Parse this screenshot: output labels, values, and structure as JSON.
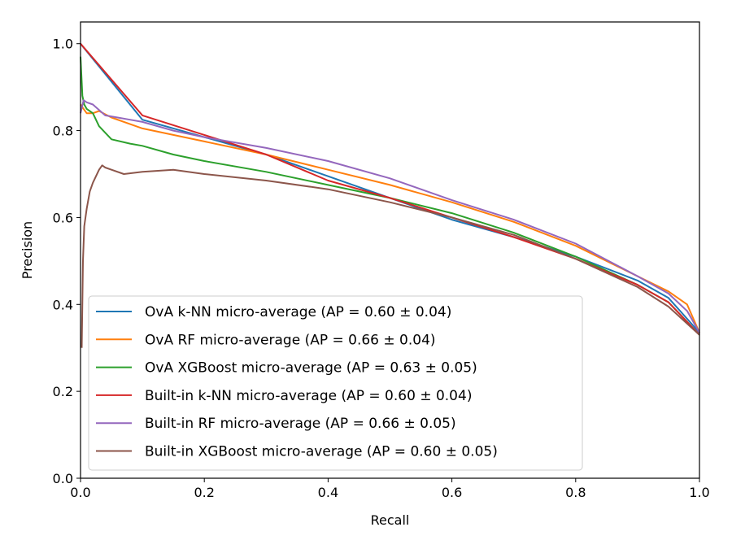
{
  "chart_data": {
    "type": "line",
    "xlabel": "Recall",
    "ylabel": "Precision",
    "xlim": [
      0.0,
      1.0
    ],
    "ylim": [
      0.0,
      1.05
    ],
    "xticks": [
      "0.0",
      "0.2",
      "0.4",
      "0.6",
      "0.8",
      "1.0"
    ],
    "yticks": [
      "0.0",
      "0.2",
      "0.4",
      "0.6",
      "0.8",
      "1.0"
    ],
    "grid": false,
    "legend_position": "lower-left",
    "series": [
      {
        "name": "OvA k-NN micro-average (AP = 0.60 ± 0.04)",
        "color": "#1f77b4",
        "x": [
          0.0,
          0.1,
          0.2,
          0.3,
          0.4,
          0.5,
          0.6,
          0.7,
          0.8,
          0.9,
          0.95,
          1.0
        ],
        "y": [
          1.0,
          0.825,
          0.785,
          0.745,
          0.695,
          0.645,
          0.595,
          0.555,
          0.51,
          0.455,
          0.415,
          0.335
        ]
      },
      {
        "name": "OvA RF micro-average (AP = 0.66 ± 0.04)",
        "color": "#ff7f0e",
        "x": [
          0.0,
          0.005,
          0.01,
          0.02,
          0.03,
          0.05,
          0.08,
          0.1,
          0.15,
          0.2,
          0.3,
          0.4,
          0.5,
          0.6,
          0.7,
          0.8,
          0.9,
          0.95,
          0.98,
          1.0
        ],
        "y": [
          0.86,
          0.85,
          0.84,
          0.84,
          0.845,
          0.83,
          0.815,
          0.805,
          0.79,
          0.775,
          0.745,
          0.71,
          0.675,
          0.635,
          0.59,
          0.535,
          0.465,
          0.43,
          0.4,
          0.335
        ]
      },
      {
        "name": "OvA XGBoost micro-average (AP = 0.63 ± 0.05)",
        "color": "#2ca02c",
        "x": [
          0.0,
          0.003,
          0.006,
          0.01,
          0.02,
          0.03,
          0.05,
          0.08,
          0.1,
          0.15,
          0.2,
          0.3,
          0.4,
          0.5,
          0.6,
          0.7,
          0.8,
          0.9,
          0.95,
          1.0
        ],
        "y": [
          0.97,
          0.88,
          0.86,
          0.85,
          0.84,
          0.81,
          0.78,
          0.77,
          0.765,
          0.745,
          0.73,
          0.705,
          0.675,
          0.645,
          0.61,
          0.565,
          0.51,
          0.445,
          0.405,
          0.33
        ]
      },
      {
        "name": "Built-in k-NN micro-average (AP = 0.60 ± 0.04)",
        "color": "#d62728",
        "x": [
          0.0,
          0.1,
          0.2,
          0.3,
          0.4,
          0.5,
          0.6,
          0.7,
          0.8,
          0.9,
          0.95,
          1.0
        ],
        "y": [
          1.0,
          0.835,
          0.79,
          0.745,
          0.685,
          0.645,
          0.6,
          0.555,
          0.505,
          0.445,
          0.405,
          0.33
        ]
      },
      {
        "name": "Built-in RF micro-average (AP = 0.66 ± 0.05)",
        "color": "#9467bd",
        "x": [
          0.0,
          0.005,
          0.01,
          0.02,
          0.04,
          0.06,
          0.08,
          0.1,
          0.15,
          0.2,
          0.3,
          0.4,
          0.5,
          0.6,
          0.7,
          0.8,
          0.9,
          0.95,
          0.98,
          1.0
        ],
        "y": [
          0.84,
          0.87,
          0.865,
          0.86,
          0.835,
          0.83,
          0.825,
          0.82,
          0.8,
          0.785,
          0.76,
          0.73,
          0.69,
          0.64,
          0.595,
          0.54,
          0.465,
          0.425,
          0.385,
          0.335
        ]
      },
      {
        "name": "Built-in XGBoost micro-average (AP = 0.60 ± 0.05)",
        "color": "#8c564b",
        "x": [
          0.002,
          0.004,
          0.006,
          0.01,
          0.015,
          0.02,
          0.03,
          0.035,
          0.04,
          0.05,
          0.07,
          0.1,
          0.15,
          0.2,
          0.3,
          0.4,
          0.5,
          0.6,
          0.7,
          0.8,
          0.9,
          0.95,
          1.0
        ],
        "y": [
          0.3,
          0.5,
          0.58,
          0.62,
          0.66,
          0.68,
          0.71,
          0.72,
          0.715,
          0.71,
          0.7,
          0.705,
          0.71,
          0.7,
          0.685,
          0.665,
          0.635,
          0.6,
          0.56,
          0.505,
          0.44,
          0.395,
          0.33
        ]
      }
    ]
  }
}
